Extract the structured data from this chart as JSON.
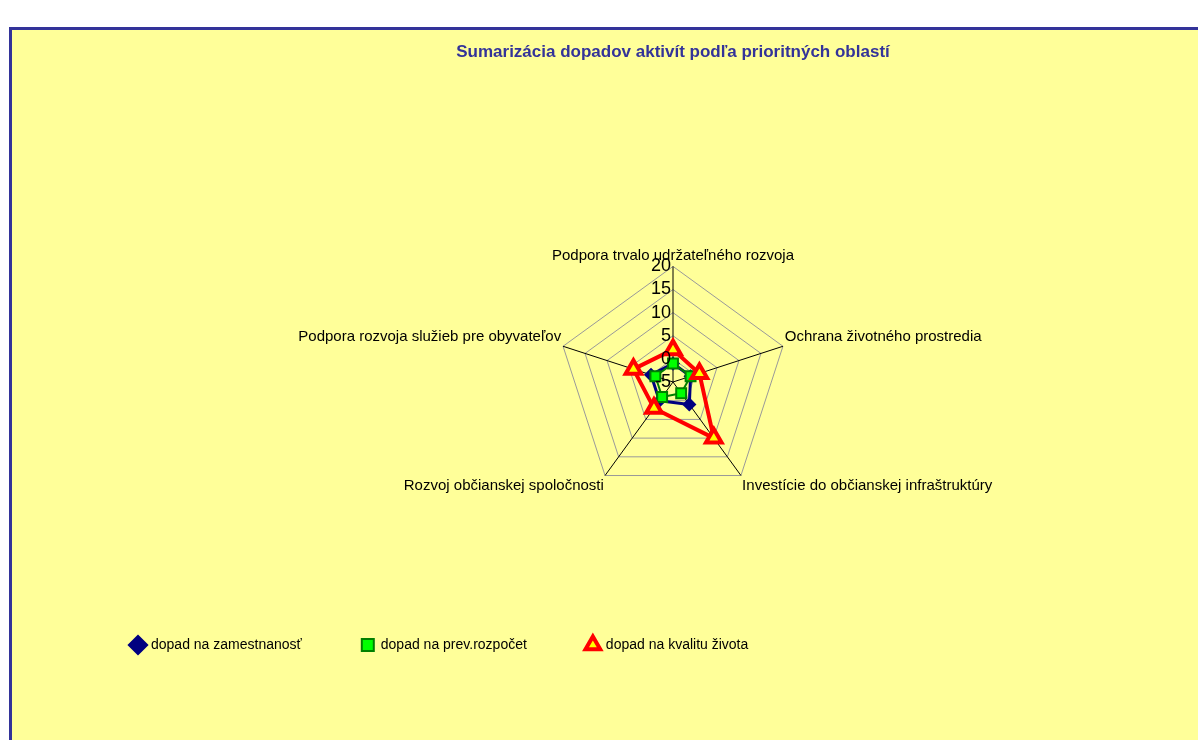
{
  "chart_data": {
    "type": "radar",
    "title": "Sumarizácia dopadov aktivít podľa prioritných oblastí",
    "categories": [
      "Podpora trvalo udržateľného rozvoja",
      "Ochrana životného prostredia",
      "Investície do občianskej infraštruktúry",
      "Rozvoj občianskej spoločnosti",
      "Podpora rozvoja služieb pre obyvateľov"
    ],
    "series": [
      {
        "name": "dopad na zamestnanosť",
        "color": "#000080",
        "marker": "diamond",
        "values": [
          -1,
          -1,
          1,
          0,
          0
        ]
      },
      {
        "name": "dopad na prev.rozpočet",
        "color": "#008000",
        "marker": "square",
        "values": [
          -1,
          -1,
          -2,
          -1,
          -1
        ]
      },
      {
        "name": "dopad na kvalitu života",
        "color": "#ff0000",
        "marker": "triangle",
        "values": [
          2,
          1,
          10,
          2,
          4
        ]
      }
    ],
    "ylim": [
      -5,
      20
    ],
    "yticks": [
      -5,
      0,
      5,
      10,
      15,
      20
    ],
    "grid": true,
    "legend": "bottom"
  }
}
